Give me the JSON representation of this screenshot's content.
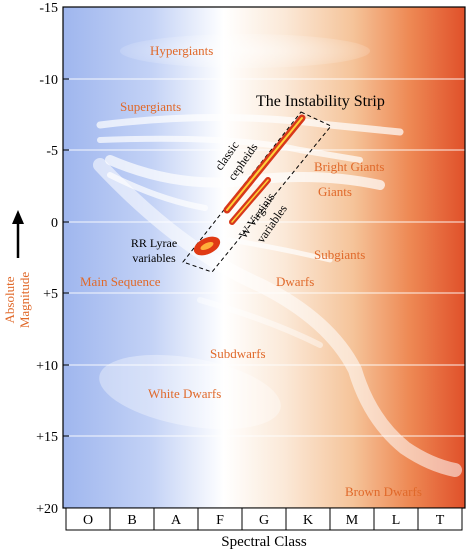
{
  "y_axis": {
    "ticks": [
      "-15",
      "-10",
      "-5",
      "0",
      "+5",
      "+10",
      "+15",
      "+20"
    ],
    "title_line1": "Absolute",
    "title_line2": "Magnitude"
  },
  "x_axis": {
    "classes": [
      "O",
      "B",
      "A",
      "F",
      "G",
      "K",
      "M",
      "L",
      "T"
    ],
    "title": "Spectral Class"
  },
  "regions": {
    "hypergiants": "Hypergiants",
    "supergiants": "Supergiants",
    "bright_giants": "Bright Giants",
    "giants": "Giants",
    "subgiants": "Subgiants",
    "main_sequence": "Main Sequence",
    "dwarfs": "Dwarfs",
    "subdwarfs": "Subdwarfs",
    "white_dwarfs": "White Dwarfs",
    "brown_dwarfs": "Brown Dwarfs"
  },
  "instability_strip": {
    "title": "The Instability Strip",
    "classic_line1": "classic",
    "classic_line2": "cepheids",
    "wvir_line1": "W Virginis",
    "wvir_line2": "variables",
    "rrlyr_line1": "RR Lyrae",
    "rrlyr_line2": "variables"
  },
  "colors": {
    "label_orange": "#e0692a",
    "hot_blue": "#a9bff2",
    "cool_red": "#e0552a",
    "strip_fill": "#e84a1a"
  }
}
